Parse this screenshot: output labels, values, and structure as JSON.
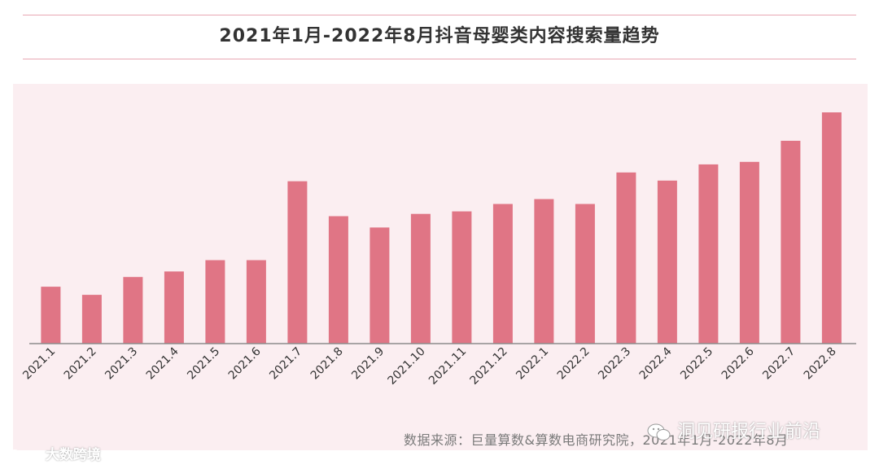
{
  "title": "2021年1月-2022年8月抖音母婴类内容搜索量趋势",
  "source_note": "数据来源：巨量算数&算数电商研究院，2021年1月-2022年8月",
  "watermark_left": "大数跨境",
  "watermark_right": "洞见研报行业前沿",
  "colors": {
    "bar": "#e07585",
    "panel": "#fbeef1",
    "rule": "#e8a7b3",
    "axis": "#8c8c8c"
  },
  "chart_data": {
    "type": "bar",
    "title": "2021年1月-2022年8月抖音母婴类内容搜索量趋势",
    "xlabel": "",
    "ylabel": "",
    "ylim": [
      0,
      100
    ],
    "grid": false,
    "categories": [
      "2021.1",
      "2021.2",
      "2021.3",
      "2021.4",
      "2021.5",
      "2021.6",
      "2021.7",
      "2021.8",
      "2021.9",
      "2021.10",
      "2021.11",
      "2021.12",
      "2022.1",
      "2022.2",
      "2022.3",
      "2022.4",
      "2022.5",
      "2022.6",
      "2022.7",
      "2022.8"
    ],
    "values": [
      24.6,
      21.1,
      28.8,
      31.2,
      36.1,
      36.1,
      70.2,
      55.1,
      50.2,
      56.1,
      57.2,
      60.4,
      62.5,
      60.4,
      74.0,
      70.5,
      77.5,
      78.6,
      87.7,
      100.0
    ]
  }
}
